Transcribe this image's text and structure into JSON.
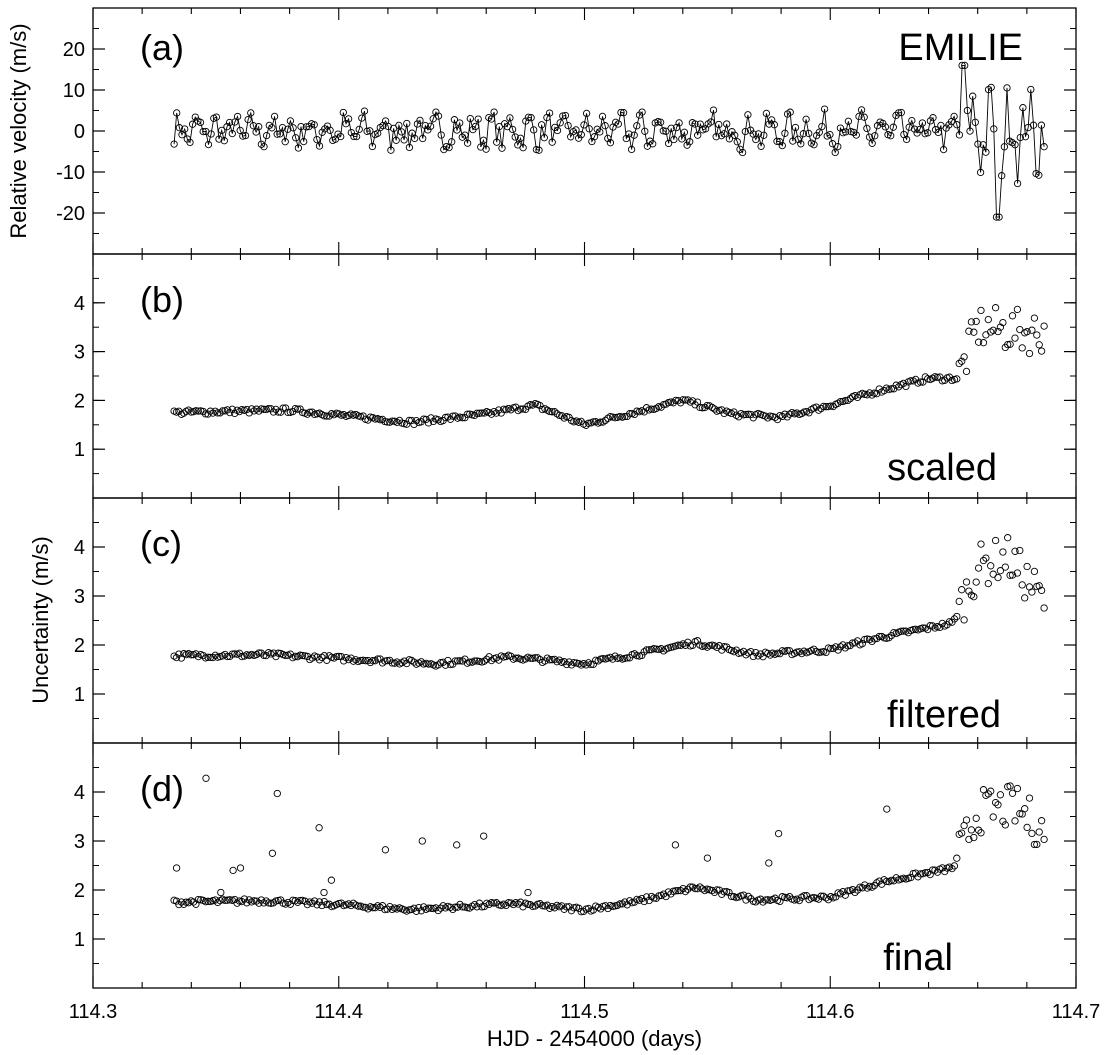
{
  "chart_data": [
    {
      "type": "line",
      "panel": "a",
      "panel_label": "(a)",
      "annotation": "EMILIE",
      "ylabel": "Relative velocity (m/s)",
      "ylim": [
        -30,
        30
      ],
      "yticks": [
        -20,
        -10,
        0,
        10,
        20
      ],
      "xlim": [
        114.3,
        114.7
      ],
      "markers": "open-circle",
      "connected": true,
      "description_of_series": "relative radial velocity vs time",
      "x_range_of_points": [
        114.333,
        114.687
      ],
      "y_min": -21,
      "y_max": 16
    },
    {
      "type": "scatter",
      "panel": "b",
      "panel_label": "(b)",
      "annotation": "scaled",
      "ylim": [
        0,
        5
      ],
      "yticks": [
        1,
        2,
        3,
        4
      ],
      "xlim": [
        114.3,
        114.7
      ],
      "markers": "open-circle",
      "anchors": [
        [
          114.333,
          1.75
        ],
        [
          114.36,
          1.78
        ],
        [
          114.38,
          1.8
        ],
        [
          114.41,
          1.65
        ],
        [
          114.43,
          1.55
        ],
        [
          114.46,
          1.72
        ],
        [
          114.48,
          1.9
        ],
        [
          114.5,
          1.5
        ],
        [
          114.52,
          1.75
        ],
        [
          114.54,
          2.0
        ],
        [
          114.56,
          1.72
        ],
        [
          114.58,
          1.65
        ],
        [
          114.6,
          1.9
        ],
        [
          114.62,
          2.2
        ],
        [
          114.64,
          2.45
        ],
        [
          114.652,
          2.45
        ],
        [
          114.66,
          3.5
        ],
        [
          114.68,
          3.4
        ]
      ]
    },
    {
      "type": "scatter",
      "panel": "c",
      "panel_label": "(c)",
      "annotation": "filtered",
      "ylabel": "Uncertainty (m/s)",
      "ylim": [
        0,
        5
      ],
      "yticks": [
        1,
        2,
        3,
        4
      ],
      "xlim": [
        114.3,
        114.7
      ],
      "markers": "open-circle",
      "anchors": [
        [
          114.333,
          1.78
        ],
        [
          114.37,
          1.8
        ],
        [
          114.41,
          1.7
        ],
        [
          114.44,
          1.62
        ],
        [
          114.47,
          1.75
        ],
        [
          114.5,
          1.62
        ],
        [
          114.52,
          1.8
        ],
        [
          114.545,
          2.05
        ],
        [
          114.57,
          1.8
        ],
        [
          114.6,
          1.9
        ],
        [
          114.62,
          2.15
        ],
        [
          114.65,
          2.45
        ],
        [
          114.66,
          3.6
        ],
        [
          114.672,
          3.8
        ],
        [
          114.687,
          2.9
        ]
      ]
    },
    {
      "type": "scatter",
      "panel": "d",
      "panel_label": "(d)",
      "annotation": "final",
      "ylim": [
        0,
        5
      ],
      "yticks": [
        1,
        2,
        3,
        4
      ],
      "xlim": [
        114.3,
        114.7
      ],
      "xticks": [
        114.3,
        114.4,
        114.5,
        114.6,
        114.7
      ],
      "xlabel": "HJD - 2454000 (days)",
      "markers": "open-circle",
      "anchors": [
        [
          114.333,
          1.75
        ],
        [
          114.37,
          1.78
        ],
        [
          114.4,
          1.7
        ],
        [
          114.43,
          1.6
        ],
        [
          114.47,
          1.72
        ],
        [
          114.5,
          1.6
        ],
        [
          114.52,
          1.75
        ],
        [
          114.545,
          2.05
        ],
        [
          114.57,
          1.8
        ],
        [
          114.6,
          1.85
        ],
        [
          114.62,
          2.15
        ],
        [
          114.65,
          2.45
        ],
        [
          114.66,
          3.6
        ],
        [
          114.675,
          3.7
        ],
        [
          114.687,
          3.2
        ]
      ],
      "outliers": [
        [
          114.334,
          2.45
        ],
        [
          114.346,
          4.28
        ],
        [
          114.352,
          1.95
        ],
        [
          114.357,
          2.4
        ],
        [
          114.36,
          2.45
        ],
        [
          114.373,
          2.75
        ],
        [
          114.375,
          3.97
        ],
        [
          114.392,
          3.27
        ],
        [
          114.394,
          1.95
        ],
        [
          114.397,
          2.2
        ],
        [
          114.419,
          2.82
        ],
        [
          114.434,
          3.0
        ],
        [
          114.448,
          2.92
        ],
        [
          114.459,
          3.1
        ],
        [
          114.477,
          1.95
        ],
        [
          114.537,
          2.92
        ],
        [
          114.55,
          2.65
        ],
        [
          114.575,
          2.55
        ],
        [
          114.579,
          3.15
        ],
        [
          114.623,
          3.65
        ]
      ]
    }
  ]
}
